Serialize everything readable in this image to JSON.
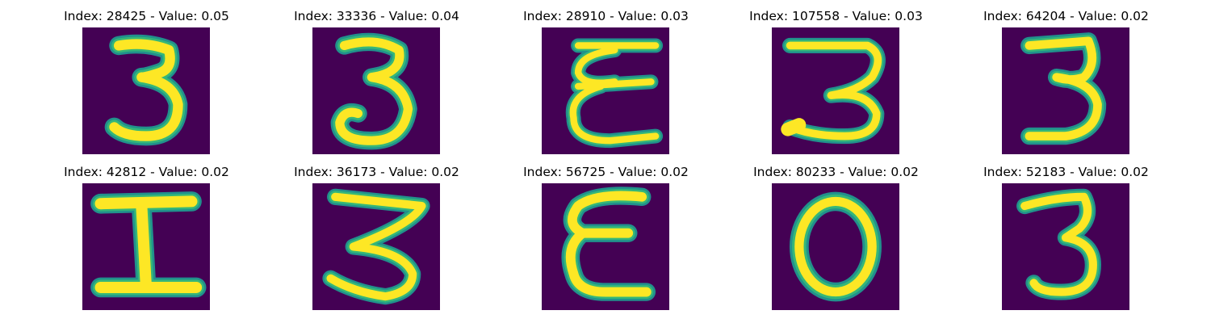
{
  "figure": {
    "panels": [
      {
        "title": "Index: 28425 - Value: 0.05",
        "glyph": "digit-3"
      },
      {
        "title": "Index: 33336 - Value: 0.04",
        "glyph": "digit-3"
      },
      {
        "title": "Index: 28910 - Value: 0.03",
        "glyph": "looped-E"
      },
      {
        "title": "Index: 107558 - Value: 0.03",
        "glyph": "flat-top-3"
      },
      {
        "title": "Index: 64204 - Value: 0.02",
        "glyph": "digit-3"
      },
      {
        "title": "Index: 42812 - Value: 0.02",
        "glyph": "letter-I"
      },
      {
        "title": "Index: 36173 - Value: 0.02",
        "glyph": "zigzag-3"
      },
      {
        "title": "Index: 56725 - Value: 0.02",
        "glyph": "letter-E"
      },
      {
        "title": "Index: 80233 - Value: 0.02",
        "glyph": "letter-O"
      },
      {
        "title": "Index: 52183 - Value: 0.02",
        "glyph": "digit-3"
      }
    ],
    "colors": {
      "background": "#440154",
      "stroke_core": "#fde725",
      "stroke_edge": "#35b779",
      "stroke_halo": "#21918c"
    }
  }
}
